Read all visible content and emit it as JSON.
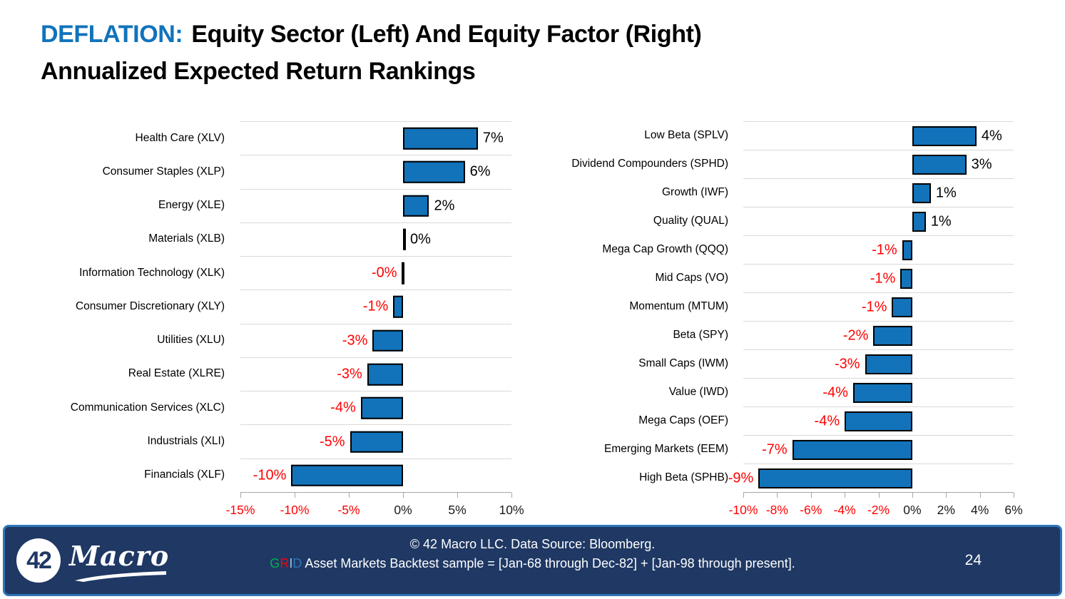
{
  "title": {
    "prefix": "DEFLATION:",
    "line1": "Equity Sector (Left) And Equity Factor (Right)",
    "line2": "Annualized Expected Return Rankings"
  },
  "colors": {
    "bar_fill": "#1273BA",
    "bar_border": "#000000",
    "negative_text": "#FF0000",
    "positive_text": "#000000",
    "gridline": "#D9D9D9",
    "axis_line": "#A6A6A6",
    "title_accent": "#1173BC",
    "footer_bg": "#1F3864",
    "footer_border": "#2E75B6"
  },
  "chart_data": [
    {
      "type": "bar",
      "orientation": "horizontal",
      "title": "Equity Sector Annualized Expected Return Rankings",
      "categories": [
        "Health Care (XLV)",
        "Consumer Staples (XLP)",
        "Energy (XLE)",
        "Materials (XLB)",
        "Information Technology (XLK)",
        "Consumer Discretionary (XLY)",
        "Utilities (XLU)",
        "Real Estate (XLRE)",
        "Communication Services (XLC)",
        "Industrials (XLI)",
        "Financials (XLF)"
      ],
      "values": [
        6.9,
        5.7,
        2.4,
        0.2,
        -0.1,
        -0.9,
        -2.8,
        -3.3,
        -3.9,
        -4.9,
        -10.3
      ],
      "value_labels": [
        "7%",
        "6%",
        "2%",
        "0%",
        "-0%",
        "-1%",
        "-3%",
        "-3%",
        "-4%",
        "-5%",
        "-10%"
      ],
      "xlim": [
        -15,
        10
      ],
      "xticks": [
        -15,
        -10,
        -5,
        0,
        5,
        10
      ],
      "xtick_labels": [
        "-15%",
        "-10%",
        "-5%",
        "0%",
        "5%",
        "10%"
      ],
      "grid": "row-separators",
      "legend": "none"
    },
    {
      "type": "bar",
      "orientation": "horizontal",
      "title": "Equity Factor Annualized Expected Return Rankings",
      "categories": [
        "Low Beta (SPLV)",
        "Dividend Compounders (SPHD)",
        "Growth (IWF)",
        "Quality (QUAL)",
        "Mega Cap Growth (QQQ)",
        "Mid Caps (VO)",
        "Momentum (MTUM)",
        "Beta (SPY)",
        "Small Caps (IWM)",
        "Value (IWD)",
        "Mega Caps (OEF)",
        "Emerging Markets (EEM)",
        "High Beta (SPHB)"
      ],
      "values": [
        3.8,
        3.2,
        1.1,
        0.8,
        -0.6,
        -0.7,
        -1.2,
        -2.3,
        -2.8,
        -3.5,
        -4.0,
        -7.1,
        -9.1
      ],
      "value_labels": [
        "4%",
        "3%",
        "1%",
        "1%",
        "-1%",
        "-1%",
        "-1%",
        "-2%",
        "-3%",
        "-4%",
        "-4%",
        "-7%",
        "-9%"
      ],
      "xlim": [
        -10,
        6
      ],
      "xticks": [
        -10,
        -8,
        -6,
        -4,
        -2,
        0,
        2,
        4,
        6
      ],
      "xtick_labels": [
        "-10%",
        "-8%",
        "-6%",
        "-4%",
        "-2%",
        "0%",
        "2%",
        "4%",
        "6%"
      ],
      "grid": "row-separators",
      "legend": "none"
    }
  ],
  "footer": {
    "copyright": "© 42 Macro LLC. Data Source: Bloomberg.",
    "grid_word": "GRID",
    "grid_letter_colors": {
      "G": "#00B050",
      "R": "#FF0000",
      "I": "#9DC3E6",
      "D": "#2E75B6"
    },
    "backtest_rest": " Asset Markets Backtest sample = [Jan-68 through Dec-82] + [Jan-98 through present].",
    "page_number": "24",
    "logo_number": "42",
    "logo_text": "Macro"
  }
}
